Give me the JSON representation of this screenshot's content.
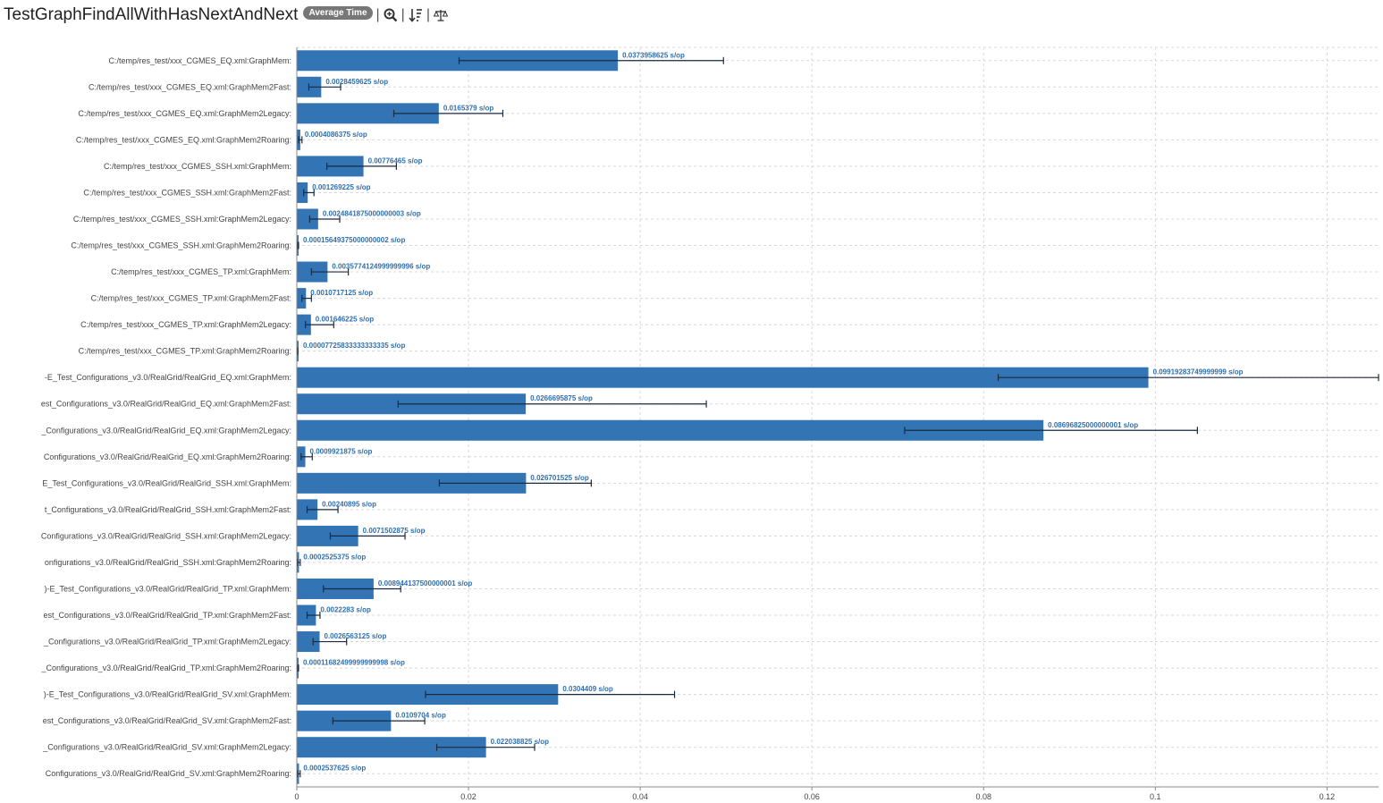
{
  "header": {
    "title": "TestGraphFindAllWithHasNextAndNext",
    "badge": "Average Time",
    "tools": [
      "zoom-icon",
      "sort-icon",
      "balance-icon"
    ]
  },
  "colors": {
    "bar": "#3374b4",
    "error": "#1a2a40",
    "grid": "#d8d8d8",
    "label": "#2f6fad"
  },
  "chart_data": {
    "type": "bar",
    "orientation": "horizontal",
    "unit": "s/op",
    "xlim": [
      0,
      0.126
    ],
    "xticks": [
      0,
      0.02,
      0.04,
      0.06,
      0.08,
      0.1,
      0.12
    ],
    "grid": true,
    "categories": [
      "C:/temp/res_test/xxx_CGMES_EQ.xml:GraphMem:",
      "C:/temp/res_test/xxx_CGMES_EQ.xml:GraphMem2Fast:",
      "C:/temp/res_test/xxx_CGMES_EQ.xml:GraphMem2Legacy:",
      "C:/temp/res_test/xxx_CGMES_EQ.xml:GraphMem2Roaring:",
      "C:/temp/res_test/xxx_CGMES_SSH.xml:GraphMem:",
      "C:/temp/res_test/xxx_CGMES_SSH.xml:GraphMem2Fast:",
      "C:/temp/res_test/xxx_CGMES_SSH.xml:GraphMem2Legacy:",
      "C:/temp/res_test/xxx_CGMES_SSH.xml:GraphMem2Roaring:",
      "C:/temp/res_test/xxx_CGMES_TP.xml:GraphMem:",
      "C:/temp/res_test/xxx_CGMES_TP.xml:GraphMem2Fast:",
      "C:/temp/res_test/xxx_CGMES_TP.xml:GraphMem2Legacy:",
      "C:/temp/res_test/xxx_CGMES_TP.xml:GraphMem2Roaring:",
      "-E_Test_Configurations_v3.0/RealGrid/RealGrid_EQ.xml:GraphMem:",
      "est_Configurations_v3.0/RealGrid/RealGrid_EQ.xml:GraphMem2Fast:",
      "_Configurations_v3.0/RealGrid/RealGrid_EQ.xml:GraphMem2Legacy:",
      "Configurations_v3.0/RealGrid/RealGrid_EQ.xml:GraphMem2Roaring:",
      "E_Test_Configurations_v3.0/RealGrid/RealGrid_SSH.xml:GraphMem:",
      "t_Configurations_v3.0/RealGrid/RealGrid_SSH.xml:GraphMem2Fast:",
      "Configurations_v3.0/RealGrid/RealGrid_SSH.xml:GraphMem2Legacy:",
      "onfigurations_v3.0/RealGrid/RealGrid_SSH.xml:GraphMem2Roaring:",
      ")-E_Test_Configurations_v3.0/RealGrid/RealGrid_TP.xml:GraphMem:",
      "est_Configurations_v3.0/RealGrid/RealGrid_TP.xml:GraphMem2Fast:",
      "_Configurations_v3.0/RealGrid/RealGrid_TP.xml:GraphMem2Legacy:",
      "_Configurations_v3.0/RealGrid/RealGrid_TP.xml:GraphMem2Roaring:",
      ")-E_Test_Configurations_v3.0/RealGrid/RealGrid_SV.xml:GraphMem:",
      "est_Configurations_v3.0/RealGrid/RealGrid_SV.xml:GraphMem2Fast:",
      "_Configurations_v3.0/RealGrid/RealGrid_SV.xml:GraphMem2Legacy:",
      "Configurations_v3.0/RealGrid/RealGrid_SV.xml:GraphMem2Roaring:"
    ],
    "values": [
      0.0373958625,
      0.0028459625,
      0.0165379,
      0.0004086375,
      0.00776465,
      0.001269225,
      0.0024841875000000003,
      0.00015649375000000002,
      0.0035774124999999996,
      0.0010717125,
      0.001646225,
      7.725833333333335e-05,
      0.09919283749999999,
      0.0266695875,
      0.08696825000000001,
      0.0009921875,
      0.026701525,
      0.00240895,
      0.0071502875,
      0.0002525375,
      0.008944137500000001,
      0.0022283,
      0.0026563125,
      0.00011682499999999998,
      0.0304409,
      0.0109704,
      0.022038825,
      0.0002537625
    ],
    "value_labels": [
      "0.0373958625 s/op",
      "0.0028459625 s/op",
      "0.0165379 s/op",
      "0.0004086375 s/op",
      "0.00776465 s/op",
      "0.001269225 s/op",
      "0.0024841875000000003 s/op",
      "0.00015649375000000002 s/op",
      "0.0035774124999999996 s/op",
      "0.0010717125 s/op",
      "0.001646225 s/op",
      "0.00007725833333333335 s/op",
      "0.09919283749999999 s/op",
      "0.0266695875 s/op",
      "0.08696825000000001 s/op",
      "0.0009921875 s/op",
      "0.026701525 s/op",
      "0.00240895 s/op",
      "0.0071502875 s/op",
      "0.0002525375 s/op",
      "0.008944137500000001 s/op",
      "0.0022283 s/op",
      "0.0026563125 s/op",
      "0.00011682499999999998 s/op",
      "0.0304409 s/op",
      "0.0109704 s/op",
      "0.022038825 s/op",
      "0.0002537625 s/op"
    ],
    "error_low": [
      0.0189,
      0.0014,
      0.0113,
      0.0002,
      0.0035,
      0.0008,
      0.0015,
      0.0001,
      0.0017,
      0.0006,
      0.001,
      5e-05,
      0.0817,
      0.0118,
      0.0708,
      0.0005,
      0.0166,
      0.0012,
      0.0039,
      0.0001,
      0.0031,
      0.0012,
      0.0019,
      8e-05,
      0.015,
      0.0042,
      0.0163,
      0.0001
    ],
    "error_high": [
      0.0497,
      0.0051,
      0.024,
      0.0006,
      0.0116,
      0.002,
      0.005,
      0.0002,
      0.006,
      0.0017,
      0.0043,
      0.0001,
      0.126,
      0.0477,
      0.1049,
      0.0018,
      0.0343,
      0.0048,
      0.0126,
      0.0004,
      0.0121,
      0.0027,
      0.0058,
      0.0002,
      0.044,
      0.0149,
      0.0277,
      0.0004
    ]
  }
}
